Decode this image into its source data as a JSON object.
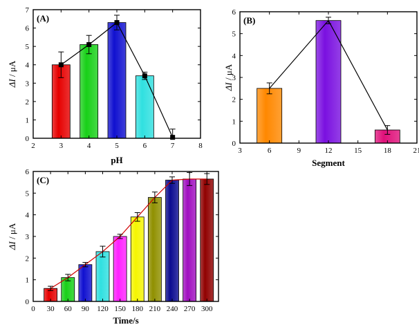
{
  "chart_data": [
    {
      "type": "bar",
      "panel_label": "(A)",
      "x": [
        3,
        4,
        5,
        6,
        7
      ],
      "values": [
        4.0,
        5.1,
        6.3,
        3.4,
        0.0
      ],
      "errors": [
        0.7,
        0.5,
        0.4,
        0.2,
        0.5
      ],
      "bar_colors": [
        "#e60000",
        "#18d018",
        "#1010d0",
        "#30e0e0",
        "#ffffff"
      ],
      "line": {
        "x": [
          3,
          4,
          5,
          6,
          7
        ],
        "y": [
          4.0,
          5.1,
          6.3,
          3.4,
          0.05
        ],
        "color": "#000000",
        "marker": "square"
      },
      "xlabel": "pH",
      "ylabel_italic": "ΔI",
      "ylabel_unit": " / μA",
      "xlim": [
        2,
        8
      ],
      "ylim": [
        0,
        7
      ],
      "xticks": [
        2,
        3,
        4,
        5,
        6,
        7,
        8
      ],
      "yticks": [
        0,
        1,
        2,
        3,
        4,
        5,
        6,
        7
      ],
      "grid": false
    },
    {
      "type": "bar",
      "panel_label": "(B)",
      "x": [
        6,
        12,
        18
      ],
      "values": [
        2.5,
        5.6,
        0.6
      ],
      "errors": [
        0.25,
        0.15,
        0.2
      ],
      "bar_colors": [
        "#ff8800",
        "#7a10e0",
        "#e0107a"
      ],
      "line": {
        "x": [
          6,
          12,
          18
        ],
        "y": [
          2.5,
          5.6,
          0.6
        ],
        "color": "#000000",
        "marker": "none"
      },
      "xlabel": "Segment",
      "ylabel_italic": "ΔI",
      "ylabel_unit": " / μA",
      "xlim": [
        3,
        21
      ],
      "ylim": [
        0,
        6
      ],
      "xticks": [
        3,
        6,
        9,
        12,
        15,
        18,
        21
      ],
      "yticks": [
        0,
        1,
        2,
        3,
        4,
        5,
        6
      ],
      "grid": false
    },
    {
      "type": "bar",
      "panel_label": "(C)",
      "x": [
        30,
        60,
        90,
        120,
        150,
        180,
        210,
        240,
        270,
        300
      ],
      "values": [
        0.6,
        1.1,
        1.7,
        2.3,
        3.0,
        3.9,
        4.8,
        5.6,
        5.65,
        5.65
      ],
      "errors": [
        0.1,
        0.15,
        0.1,
        0.25,
        0.1,
        0.2,
        0.25,
        0.15,
        0.3,
        0.25
      ],
      "bar_colors": [
        "#e60000",
        "#18d018",
        "#1010d0",
        "#30e0e0",
        "#ff20ff",
        "#f5f500",
        "#909000",
        "#0a0a90",
        "#a010c0",
        "#900000"
      ],
      "line": {
        "x": [
          30,
          60,
          90,
          120,
          150,
          180,
          210,
          240,
          270,
          300
        ],
        "y": [
          0.6,
          1.1,
          1.7,
          2.3,
          3.0,
          3.9,
          4.8,
          5.6,
          5.65,
          5.65
        ],
        "color": "#d00000",
        "marker": "none"
      },
      "xlabel": "Time/s",
      "ylabel_italic": "ΔI",
      "ylabel_unit": " / μA",
      "xlim": [
        0,
        320
      ],
      "ylim": [
        0,
        6
      ],
      "xticks": [
        0,
        30,
        60,
        90,
        120,
        150,
        180,
        210,
        240,
        270,
        300
      ],
      "yticks": [
        0,
        1,
        2,
        3,
        4,
        5,
        6
      ],
      "grid": false
    }
  ]
}
